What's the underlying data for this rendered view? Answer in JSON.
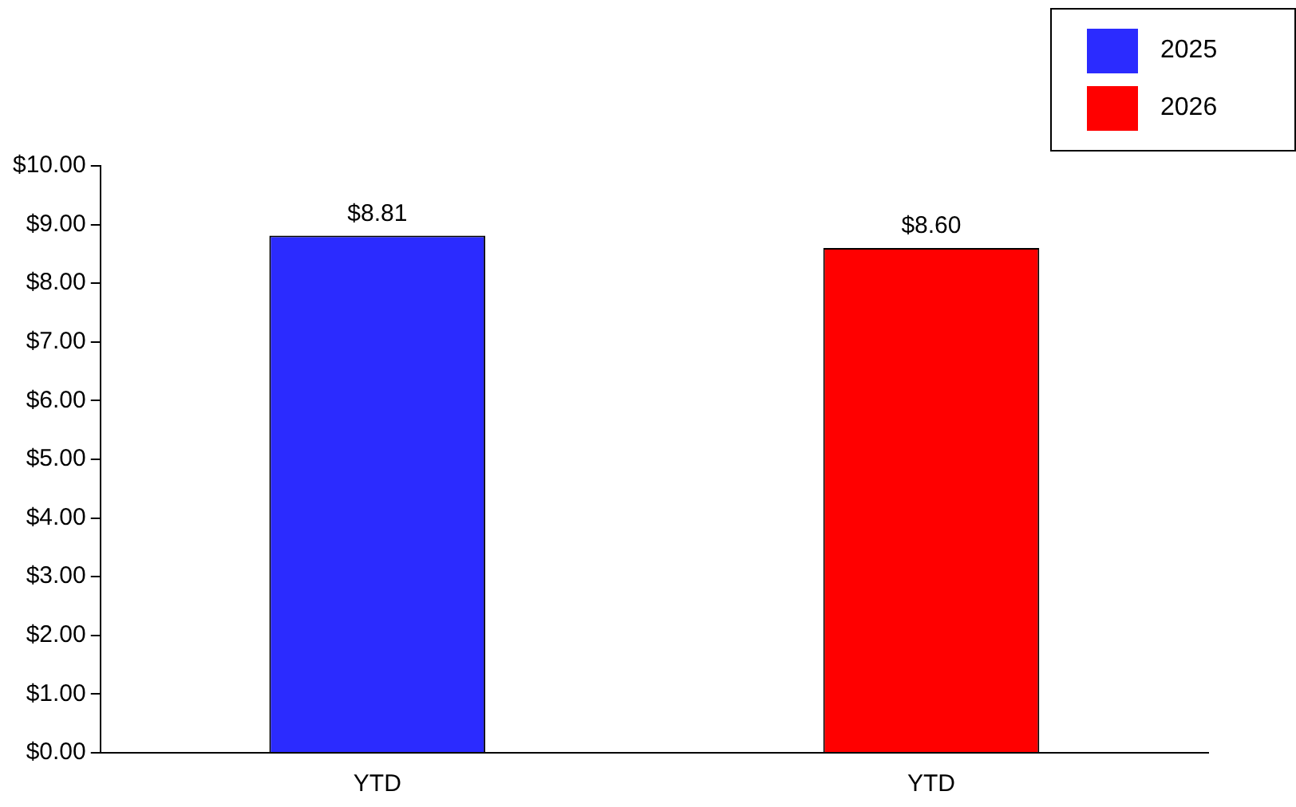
{
  "chart_data": {
    "type": "bar",
    "categories": [
      "YTD",
      "YTD"
    ],
    "series": [
      {
        "name": "2025",
        "color": "#2b2bff",
        "values": [
          8.81,
          null
        ],
        "value_labels": [
          "$8.81",
          null
        ]
      },
      {
        "name": "2026",
        "color": "#ff0000",
        "values": [
          null,
          8.6
        ],
        "value_labels": [
          null,
          "$8.60"
        ]
      }
    ],
    "ylim": [
      0,
      10
    ],
    "yticks": [
      {
        "value": 0,
        "label": "$0.00"
      },
      {
        "value": 1,
        "label": "$1.00"
      },
      {
        "value": 2,
        "label": "$2.00"
      },
      {
        "value": 3,
        "label": "$3.00"
      },
      {
        "value": 4,
        "label": "$4.00"
      },
      {
        "value": 5,
        "label": "$5.00"
      },
      {
        "value": 6,
        "label": "$6.00"
      },
      {
        "value": 7,
        "label": "$7.00"
      },
      {
        "value": 8,
        "label": "$8.00"
      },
      {
        "value": 9,
        "label": "$9.00"
      },
      {
        "value": 10,
        "label": "$10.00"
      }
    ],
    "grid": false,
    "legend": "top right"
  }
}
